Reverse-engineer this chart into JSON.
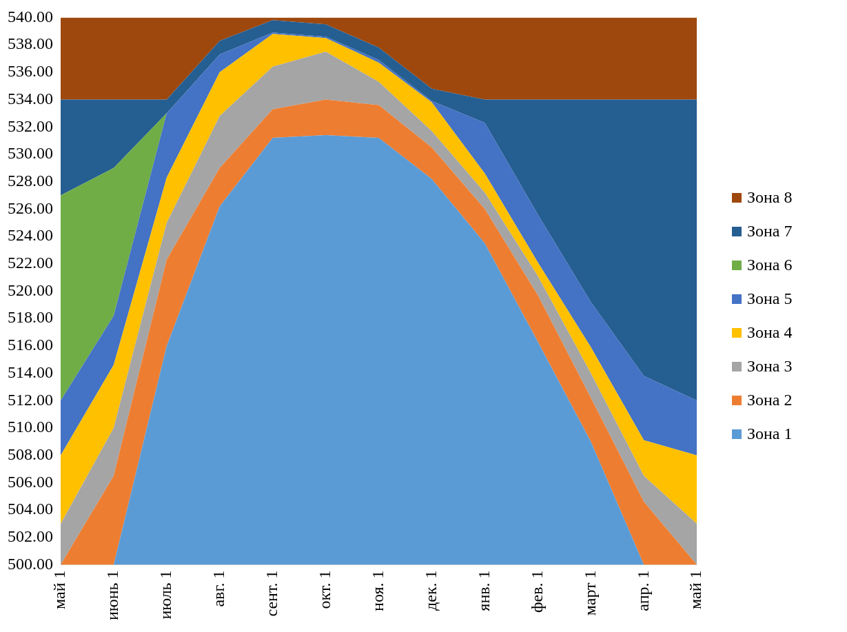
{
  "chart_data": {
    "type": "area",
    "legend": "right",
    "grid": false,
    "categories": [
      "май 1",
      "июнь 1",
      "июль 1",
      "авг. 1",
      "сент. 1",
      "окт. 1",
      "ноя. 1",
      "дек. 1",
      "янв. 1",
      "фев. 1",
      "март 1",
      "апр. 1",
      "май 1"
    ],
    "ylim": [
      500,
      540
    ],
    "yticks": [
      {
        "value": 500,
        "label": "500.00"
      },
      {
        "value": 502,
        "label": "502.00"
      },
      {
        "value": 504,
        "label": "504.00"
      },
      {
        "value": 506,
        "label": "506.00"
      },
      {
        "value": 508,
        "label": "508.00"
      },
      {
        "value": 510,
        "label": "510.00"
      },
      {
        "value": 512,
        "label": "512.00"
      },
      {
        "value": 514,
        "label": "514.00"
      },
      {
        "value": 516,
        "label": "516.00"
      },
      {
        "value": 518,
        "label": "518.00"
      },
      {
        "value": 520,
        "label": "520.00"
      },
      {
        "value": 522,
        "label": "522.00"
      },
      {
        "value": 524,
        "label": "524.00"
      },
      {
        "value": 526,
        "label": "526.00"
      },
      {
        "value": 528,
        "label": "528.00"
      },
      {
        "value": 530,
        "label": "530.00"
      },
      {
        "value": 532,
        "label": "532.00"
      },
      {
        "value": 534,
        "label": "534.00"
      },
      {
        "value": 536,
        "label": "536.00"
      },
      {
        "value": 538,
        "label": "538.00"
      },
      {
        "value": 540,
        "label": "540.00"
      }
    ],
    "series": [
      {
        "name": "Зона 1",
        "color": "#5b9bd5",
        "values": [
          500,
          500,
          516,
          526.2,
          531.2,
          531.4,
          531.2,
          528.2,
          523.5,
          516.3,
          509,
          500,
          500
        ]
      },
      {
        "name": "Зона 2",
        "color": "#ed7d31",
        "values": [
          500,
          506.5,
          522.3,
          529,
          533.3,
          534,
          533.6,
          530.5,
          526,
          519.7,
          512.2,
          504.6,
          500
        ]
      },
      {
        "name": "Зона 3",
        "color": "#a5a5a5",
        "values": [
          503,
          510,
          525,
          532.8,
          536.4,
          537.5,
          535.3,
          531.7,
          527.2,
          521.1,
          514,
          506.5,
          503
        ]
      },
      {
        "name": "Зона 4",
        "color": "#ffc000",
        "values": [
          508,
          514.6,
          528.3,
          536,
          538.8,
          538.5,
          536.7,
          533.8,
          528.6,
          522.1,
          515.9,
          509.1,
          508
        ]
      },
      {
        "name": "Зона 5",
        "color": "#4472c4",
        "values": [
          512,
          518.2,
          533,
          537.3,
          538.9,
          538.6,
          536.9,
          533.9,
          532.3,
          525.6,
          519.2,
          513.8,
          512
        ]
      },
      {
        "name": "Зона 6",
        "color": "#70ad47",
        "values": [
          527,
          529,
          533,
          537.3,
          538.9,
          538.6,
          536.9,
          533.9,
          532.3,
          525.6,
          519.2,
          513.8,
          512
        ]
      },
      {
        "name": "Зона 7",
        "color": "#255e91",
        "values": [
          534,
          534,
          534,
          538.3,
          539.8,
          539.5,
          537.8,
          534.8,
          534,
          534,
          534,
          534,
          534
        ]
      },
      {
        "name": "Зона 8",
        "color": "#9e480e",
        "values": [
          540,
          540,
          540,
          540,
          540,
          540,
          540,
          540,
          540,
          540,
          540,
          540,
          540
        ]
      }
    ]
  }
}
